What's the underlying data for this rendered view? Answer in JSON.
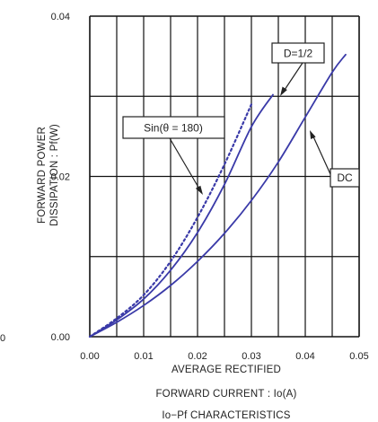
{
  "chart_data": {
    "type": "line",
    "xlim": [
      0,
      0.05
    ],
    "ylim": [
      0,
      0.04
    ],
    "x_ticks": [
      "0.00",
      "0.01",
      "0.02",
      "0.03",
      "0.04",
      "0.05"
    ],
    "y_ticks": [
      "0.00",
      "0.02",
      "0.04"
    ],
    "grid": true,
    "xlabel_lines": [
      "AVERAGE RECTIFIED",
      "FORWARD CURRENT : Io(A)"
    ],
    "ylabel_lines": [
      "FORWARD POWER",
      "DISSIPATION : Pf(W)"
    ],
    "caption": "Io−Pf CHARACTERISTICS",
    "left_edge_fragment": "0",
    "series": [
      {
        "label": "Sin(θ = 180)",
        "style": "dotted",
        "points": [
          [
            0,
            0
          ],
          [
            0.005,
            0.0023
          ],
          [
            0.01,
            0.0052
          ],
          [
            0.015,
            0.0094
          ],
          [
            0.02,
            0.0149
          ],
          [
            0.025,
            0.0215
          ],
          [
            0.03,
            0.029
          ]
        ]
      },
      {
        "label": "D=1/2",
        "style": "solid",
        "points": [
          [
            0,
            0
          ],
          [
            0.005,
            0.0021
          ],
          [
            0.01,
            0.0047
          ],
          [
            0.015,
            0.0083
          ],
          [
            0.02,
            0.013
          ],
          [
            0.025,
            0.019
          ],
          [
            0.03,
            0.0262
          ],
          [
            0.034,
            0.0302
          ]
        ]
      },
      {
        "label": "DC",
        "style": "solid",
        "points": [
          [
            0,
            0
          ],
          [
            0.005,
            0.0018
          ],
          [
            0.01,
            0.0039
          ],
          [
            0.015,
            0.0064
          ],
          [
            0.02,
            0.0094
          ],
          [
            0.025,
            0.0129
          ],
          [
            0.03,
            0.017
          ],
          [
            0.035,
            0.0218
          ],
          [
            0.04,
            0.0274
          ],
          [
            0.045,
            0.033
          ],
          [
            0.0475,
            0.0352
          ]
        ]
      }
    ],
    "line_color": "#3a3aa8"
  }
}
